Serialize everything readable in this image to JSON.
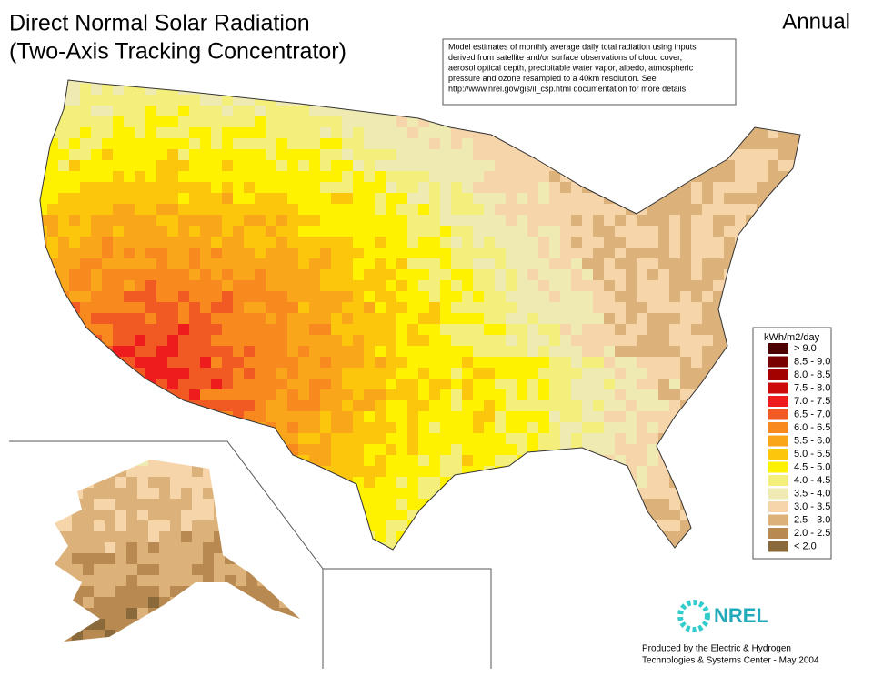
{
  "title": [
    "Direct Normal Solar Radiation",
    "(Two-Axis Tracking Concentrator)"
  ],
  "period": "Annual",
  "note": [
    "Model estimates of monthly average daily total radiation using inputs",
    "derived from satellite and/or surface observations of cloud cover,",
    "aerosol optical depth, precipitable water vapor, albedo, atmospheric",
    "pressure and ozone resampled to a 40km resolution.  See",
    "http://www.nrel.gov/gis/il_csp.html documentation for more details."
  ],
  "legend": {
    "title": "kWh/m2/day",
    "items": [
      {
        "label": "> 9.0",
        "color": "#4d0000"
      },
      {
        "label": "8.5 - 9.0",
        "color": "#780000"
      },
      {
        "label": "8.0 - 8.5",
        "color": "#a30000"
      },
      {
        "label": "7.5 - 8.0",
        "color": "#cc0a0a"
      },
      {
        "label": "7.0 - 7.5",
        "color": "#ee1c1c"
      },
      {
        "label": "6.5 - 7.0",
        "color": "#f15a22"
      },
      {
        "label": "6.0 - 6.5",
        "color": "#f7891f"
      },
      {
        "label": "5.5 - 6.0",
        "color": "#f9a61a"
      },
      {
        "label": "5.0 - 5.5",
        "color": "#fcc60d"
      },
      {
        "label": "4.5 - 5.0",
        "color": "#fff200"
      },
      {
        "label": "4.0 - 4.5",
        "color": "#f4ef7a"
      },
      {
        "label": "3.5 - 4.0",
        "color": "#eeeab2"
      },
      {
        "label": "3.0 - 3.5",
        "color": "#f6d5aa"
      },
      {
        "label": "2.5 - 3.0",
        "color": "#dcb27a"
      },
      {
        "label": "2.0 - 2.5",
        "color": "#b88a52"
      },
      {
        "label": "< 2.0",
        "color": "#8a6a3a"
      }
    ]
  },
  "logo": "NREL",
  "credit": [
    "Produced by the Electric & Hydrogen",
    "Technologies & Systems Center - May 2004"
  ]
}
